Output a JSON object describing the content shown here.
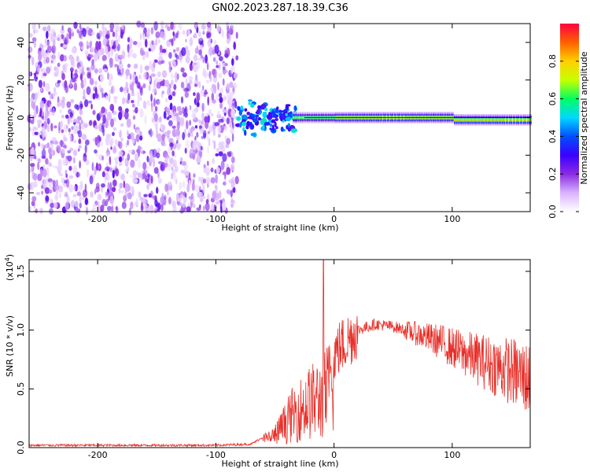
{
  "chart_data": [
    {
      "type": "heatmap",
      "title": "GN02.2023.287.18.39.C36",
      "xlabel": "Height of straight line (km)",
      "ylabel": "Frequency (Hz)",
      "xlim": [
        -258,
        166
      ],
      "ylim": [
        -50,
        50
      ],
      "x_ticks": [
        -200,
        -100,
        0,
        100
      ],
      "y_ticks": [
        -40,
        -20,
        0,
        20,
        40
      ],
      "colorbar": {
        "label": "Normalized spectral amplitude",
        "range": [
          0,
          1
        ],
        "ticks": [
          "0.0",
          "0.2",
          "0.4",
          "0.6",
          "0.8"
        ],
        "colors": [
          "#ffffff",
          "#d9b3ff",
          "#8a2be2",
          "#3a00ff",
          "#0050ff",
          "#00d8ff",
          "#00ff60",
          "#c8ff00",
          "#ffd000",
          "#ff6000",
          "#ff0040"
        ]
      },
      "description_regions": {
        "noise_end_km": -82,
        "signal_start_km": -80,
        "carrier_freq_hz": 0
      }
    },
    {
      "type": "line",
      "xlabel": "Height of straight line (km)",
      "ylabel": "SNR (10 * v/v)",
      "y_scale_label": "(x10",
      "y_scale_exp": "4",
      "y_scale_close": ")",
      "xlim": [
        -258,
        166
      ],
      "ylim": [
        0,
        1.6
      ],
      "x_ticks": [
        -200,
        -100,
        0,
        100
      ],
      "y_ticks": [
        "0.0",
        "0.5",
        "1.0",
        "1.5"
      ],
      "color": "#e8302a",
      "envelope_points": [
        [
          -258,
          0.02
        ],
        [
          -100,
          0.02
        ],
        [
          -70,
          0.03
        ],
        [
          -50,
          0.15
        ],
        [
          -35,
          0.4
        ],
        [
          -20,
          0.55
        ],
        [
          -10,
          0.6
        ],
        [
          0,
          0.8
        ],
        [
          10,
          0.9
        ],
        [
          20,
          1.0
        ],
        [
          35,
          1.05
        ],
        [
          50,
          1.03
        ],
        [
          70,
          0.97
        ],
        [
          90,
          0.9
        ],
        [
          110,
          0.8
        ],
        [
          130,
          0.72
        ],
        [
          150,
          0.65
        ],
        [
          166,
          0.58
        ]
      ]
    }
  ]
}
